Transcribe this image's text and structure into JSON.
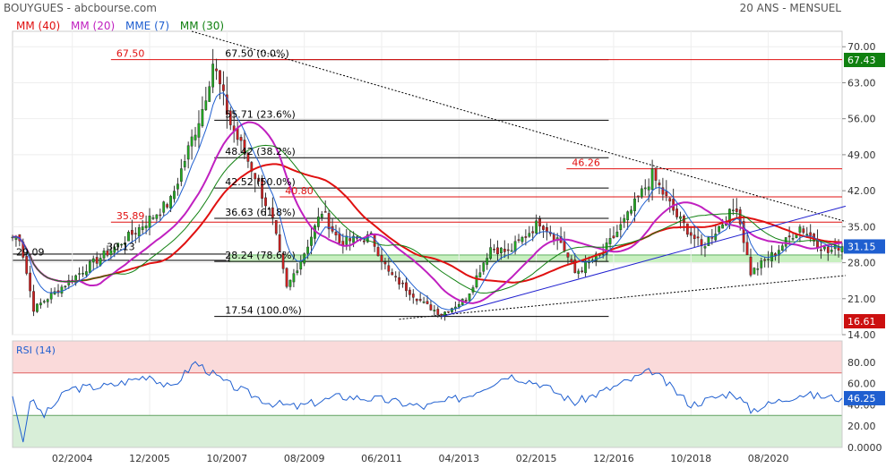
{
  "header": {
    "title": "BOUYGUES - abcbourse.com",
    "period": "20 ANS - MENSUEL"
  },
  "legend": [
    {
      "label": "MM (40)",
      "color": "#e01010"
    },
    {
      "label": "MM (20)",
      "color": "#c020c0"
    },
    {
      "label": "MME (7)",
      "color": "#1f5fd0"
    },
    {
      "label": "MM (30)",
      "color": "#108010"
    }
  ],
  "colors": {
    "up": "#22aa22",
    "down": "#cc2020",
    "wick": "#333333",
    "fib_line": "#000000",
    "level_line": "#e01010",
    "trend_blue": "#2020d0",
    "rsi_line": "#1f5fd0"
  },
  "chart_data": [
    {
      "type": "candlestick",
      "title": "BOUYGUES",
      "x_tick_labels": [
        "02/2004",
        "12/2005",
        "10/2007",
        "08/2009",
        "06/2011",
        "04/2013",
        "02/2015",
        "12/2016",
        "10/2018",
        "08/2020"
      ],
      "y_axis": {
        "side": "right",
        "ylim": [
          14,
          73
        ],
        "tick_labels": [
          "70.00",
          "63.00",
          "56.00",
          "49.00",
          "42.00",
          "35.00",
          "28.00",
          "21.00",
          "14.00"
        ]
      },
      "ohlc_anchors": [
        {
          "date": "2002-11",
          "close": 33
        },
        {
          "date": "2003-03",
          "close": 19
        },
        {
          "date": "2004-06",
          "close": 27
        },
        {
          "date": "2005-06",
          "close": 33
        },
        {
          "date": "2006-06",
          "close": 40
        },
        {
          "date": "2007-03",
          "close": 58
        },
        {
          "date": "2007-06",
          "close": 67
        },
        {
          "date": "2007-11",
          "close": 55
        },
        {
          "date": "2008-06",
          "close": 45
        },
        {
          "date": "2008-11",
          "close": 36
        },
        {
          "date": "2009-03",
          "close": 23
        },
        {
          "date": "2009-08",
          "close": 30
        },
        {
          "date": "2010-01",
          "close": 38
        },
        {
          "date": "2010-06",
          "close": 32
        },
        {
          "date": "2011-03",
          "close": 33
        },
        {
          "date": "2011-08",
          "close": 26
        },
        {
          "date": "2012-06",
          "close": 20
        },
        {
          "date": "2012-11",
          "close": 18
        },
        {
          "date": "2013-06",
          "close": 21
        },
        {
          "date": "2014-01",
          "close": 31
        },
        {
          "date": "2014-06",
          "close": 30
        },
        {
          "date": "2015-03",
          "close": 36
        },
        {
          "date": "2015-09",
          "close": 32
        },
        {
          "date": "2016-01",
          "close": 26
        },
        {
          "date": "2016-09",
          "close": 30
        },
        {
          "date": "2017-04",
          "close": 37
        },
        {
          "date": "2017-11",
          "close": 45
        },
        {
          "date": "2018-06",
          "close": 37
        },
        {
          "date": "2019-01",
          "close": 31
        },
        {
          "date": "2019-11",
          "close": 39
        },
        {
          "date": "2020-03",
          "close": 26
        },
        {
          "date": "2020-10",
          "close": 30
        },
        {
          "date": "2021-05",
          "close": 35
        },
        {
          "date": "2022-01",
          "close": 30
        },
        {
          "date": "2022-04",
          "close": 31.15
        }
      ],
      "last_price": {
        "label": "31.15",
        "color": "#1f5fd0"
      },
      "range_high_badge": {
        "label": "67.43",
        "color": "#108010"
      },
      "range_low_badge": {
        "label": "16.61",
        "color": "#cc1010"
      },
      "fibonacci": {
        "levels": [
          {
            "price": 67.5,
            "label": "67.50  (0.0%)"
          },
          {
            "price": 55.71,
            "label": "55.71  (23.6%)"
          },
          {
            "price": 48.42,
            "label": "48.42  (38.2%)"
          },
          {
            "price": 42.52,
            "label": "42.52  (50.0%)"
          },
          {
            "price": 36.63,
            "label": "36.63  (61.8%)"
          },
          {
            "price": 28.24,
            "label": "28.24  (78.6%)"
          },
          {
            "price": 17.54,
            "label": "17.54  (100.0%)"
          }
        ]
      },
      "horizontal_levels": [
        {
          "price": 67.5,
          "label": "67.50"
        },
        {
          "price": 46.26,
          "label": "46.26"
        },
        {
          "price": 40.8,
          "label": "40.80"
        },
        {
          "price": 35.89,
          "label": "35.89"
        }
      ],
      "support_zone": {
        "low": 28.0,
        "high": 29.5
      },
      "zone_labels": [
        {
          "price": 29.09,
          "label": "29.09"
        },
        {
          "price": 30.13,
          "label": "30.13"
        }
      ],
      "trendlines": [
        {
          "style": "dotted",
          "from": {
            "date": "2006-12",
            "price": 73
          },
          "to": {
            "date": "2022-06",
            "price": 36
          }
        },
        {
          "style": "dotted",
          "from": {
            "date": "2011-11",
            "price": 17
          },
          "to": {
            "date": "2022-06",
            "price": 25.5
          }
        },
        {
          "style": "solid-blue",
          "from": {
            "date": "2012-11",
            "price": 17.5
          },
          "to": {
            "date": "2022-06",
            "price": 39
          }
        }
      ]
    },
    {
      "type": "line",
      "title": "RSI (14)",
      "ylim": [
        0,
        100
      ],
      "y_tick_labels": [
        "80.00",
        "60.00",
        "40.00",
        "20.00",
        "0.0000"
      ],
      "bands": {
        "overbought": 70,
        "oversold": 30
      },
      "last_value": {
        "label": "46.25"
      },
      "anchors": [
        {
          "date": "2002-09",
          "value": 48
        },
        {
          "date": "2002-12",
          "value": 5
        },
        {
          "date": "2003-02",
          "value": 45
        },
        {
          "date": "2003-06",
          "value": 30
        },
        {
          "date": "2004-01",
          "value": 55
        },
        {
          "date": "2005-01",
          "value": 58
        },
        {
          "date": "2005-12",
          "value": 68
        },
        {
          "date": "2006-06",
          "value": 55
        },
        {
          "date": "2007-01",
          "value": 80
        },
        {
          "date": "2007-10",
          "value": 60
        },
        {
          "date": "2008-10",
          "value": 42
        },
        {
          "date": "2009-06",
          "value": 38
        },
        {
          "date": "2010-06",
          "value": 48
        },
        {
          "date": "2011-06",
          "value": 45
        },
        {
          "date": "2012-06",
          "value": 38
        },
        {
          "date": "2013-06",
          "value": 48
        },
        {
          "date": "2014-06",
          "value": 68
        },
        {
          "date": "2015-03",
          "value": 60
        },
        {
          "date": "2016-01",
          "value": 42
        },
        {
          "date": "2017-01",
          "value": 58
        },
        {
          "date": "2017-11",
          "value": 72
        },
        {
          "date": "2018-10",
          "value": 40
        },
        {
          "date": "2019-10",
          "value": 52
        },
        {
          "date": "2020-03",
          "value": 35
        },
        {
          "date": "2021-05",
          "value": 50
        },
        {
          "date": "2022-04",
          "value": 46.25
        }
      ]
    }
  ]
}
